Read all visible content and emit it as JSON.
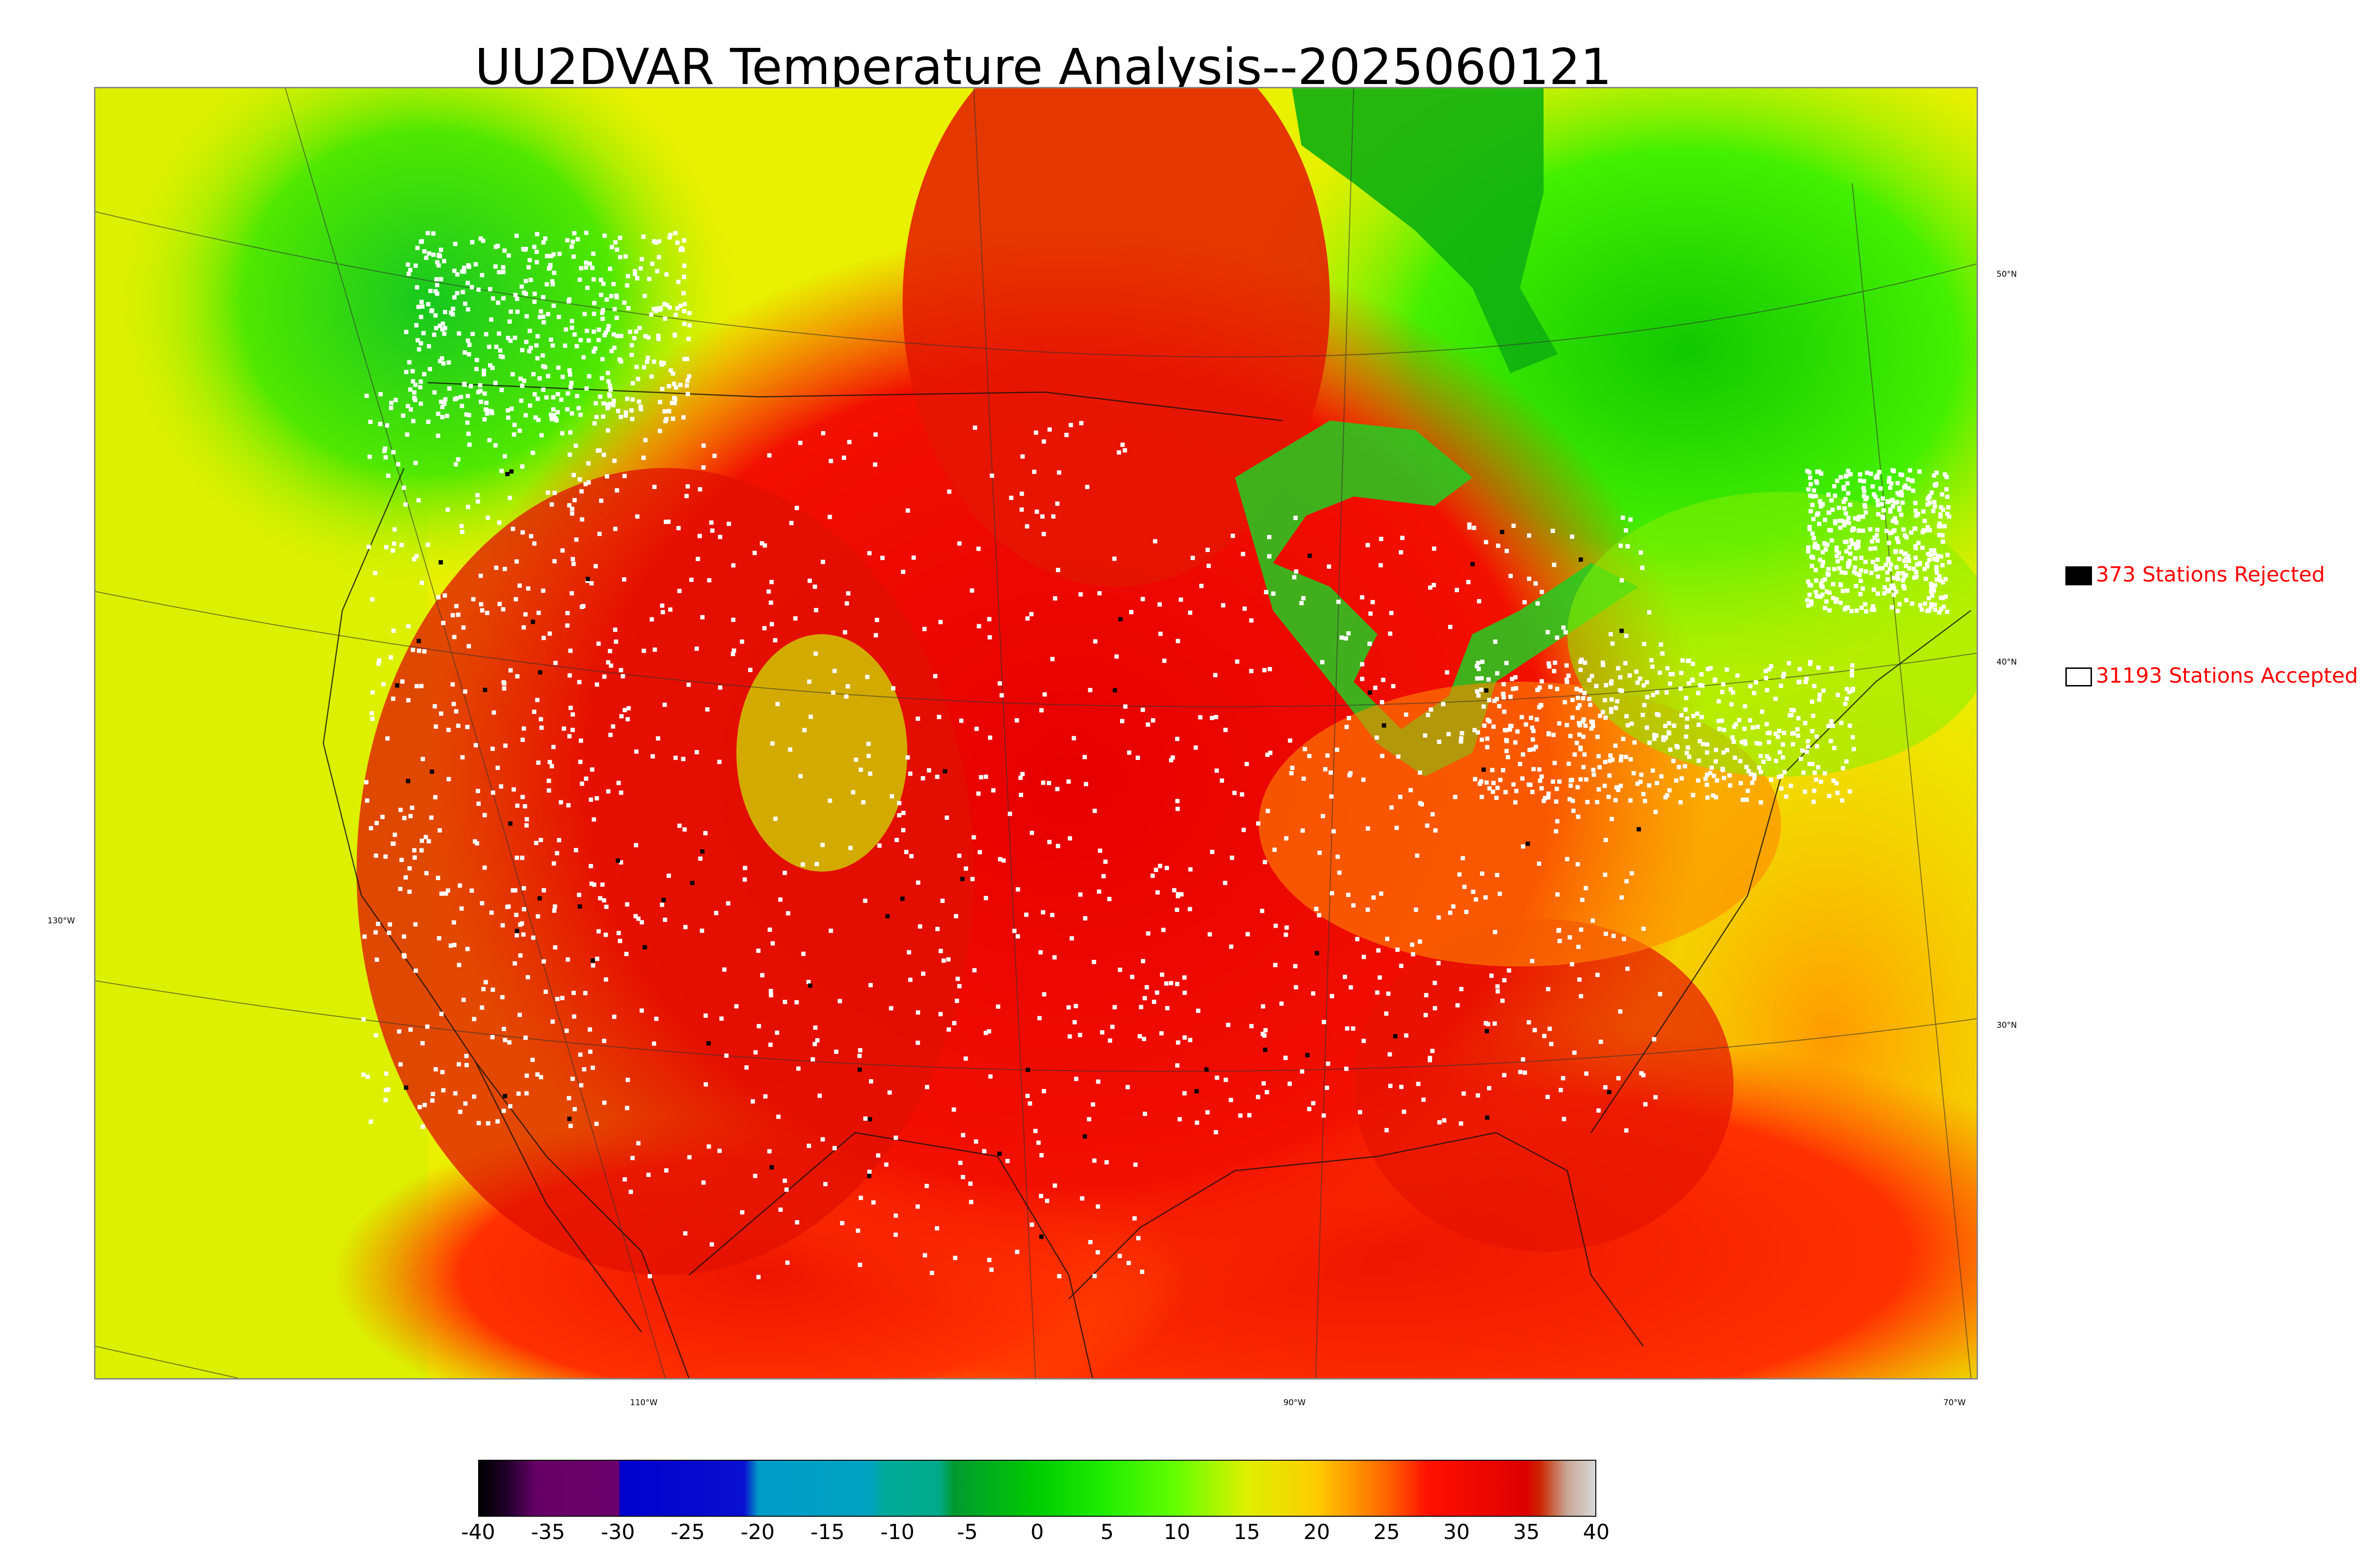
{
  "title": "UU2DVAR Temperature Analysis--2025060121",
  "map": {
    "lat_labels": [
      "50°N",
      "40°N",
      "30°N"
    ],
    "lon_labels": [
      "130°W",
      "110°W",
      "90°W",
      "70°W"
    ]
  },
  "legend": {
    "rejected": {
      "label": "373 Stations Rejected",
      "color": "#000000"
    },
    "accepted": {
      "label": "31193 Stations Accepted",
      "color": "#ffffff"
    }
  },
  "colorbar": {
    "min": -40,
    "max": 40,
    "ticks": [
      "-40",
      "-35",
      "-30",
      "-25",
      "-20",
      "-15",
      "-10",
      "-5",
      "0",
      "5",
      "10",
      "15",
      "20",
      "25",
      "30",
      "35",
      "40"
    ],
    "stops": [
      {
        "v": -40,
        "c": "#000000"
      },
      {
        "v": -38,
        "c": "#20002a"
      },
      {
        "v": -36,
        "c": "#650065"
      },
      {
        "v": -30,
        "c": "#6a006a"
      },
      {
        "v": -29.9,
        "c": "#0000cd"
      },
      {
        "v": -21,
        "c": "#0a10d0"
      },
      {
        "v": -20,
        "c": "#009bc8"
      },
      {
        "v": -12,
        "c": "#00a2c0"
      },
      {
        "v": -11,
        "c": "#00aa9a"
      },
      {
        "v": -7,
        "c": "#00aa88"
      },
      {
        "v": -6,
        "c": "#009a30"
      },
      {
        "v": 0,
        "c": "#00cc00"
      },
      {
        "v": 5,
        "c": "#22ee00"
      },
      {
        "v": 10,
        "c": "#66ff00"
      },
      {
        "v": 15,
        "c": "#ddf000"
      },
      {
        "v": 20,
        "c": "#ffcc00"
      },
      {
        "v": 25,
        "c": "#ff6600"
      },
      {
        "v": 28,
        "c": "#ff1100"
      },
      {
        "v": 35,
        "c": "#dd0000"
      },
      {
        "v": 36,
        "c": "#cc2200"
      },
      {
        "v": 37,
        "c": "#c86848"
      },
      {
        "v": 38,
        "c": "#c8a898"
      },
      {
        "v": 40,
        "c": "#d8d8d8"
      }
    ]
  }
}
